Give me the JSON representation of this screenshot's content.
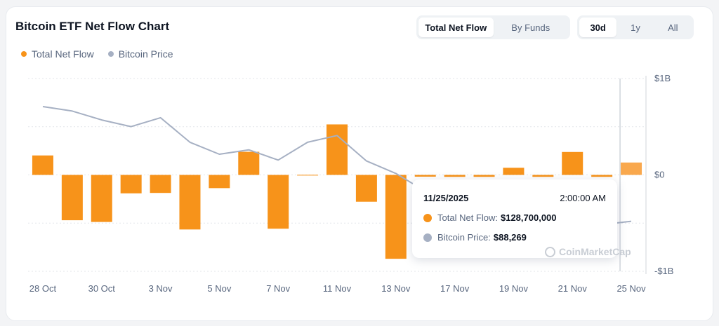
{
  "title": "Bitcoin ETF Net Flow Chart",
  "view_tabs": [
    {
      "label": "Total Net Flow",
      "active": true
    },
    {
      "label": "By Funds",
      "active": false
    }
  ],
  "range_tabs": [
    {
      "label": "30d",
      "active": true
    },
    {
      "label": "1y",
      "active": false
    },
    {
      "label": "All",
      "active": false
    }
  ],
  "colors": {
    "flow": "#f7931a",
    "price": "#a6b0c3",
    "grid": "#e3e6ea"
  },
  "tooltip": {
    "date": "11/25/2025",
    "time": "2:00:00 AM",
    "flow_label": "Total Net Flow:",
    "flow_value": "$128,700,000",
    "price_label": "Bitcoin Price:",
    "price_value": "$88,269"
  },
  "watermark": "CoinMarketCap",
  "chart_data": {
    "type": "bar",
    "legend": [
      "Total Net Flow",
      "Bitcoin Price"
    ],
    "legend_position": "top-left",
    "x": [
      "10/28",
      "10/29",
      "10/30",
      "10/31",
      "11/3",
      "11/4",
      "11/5",
      "11/6",
      "11/7",
      "11/10",
      "11/11",
      "11/12",
      "11/13",
      "11/14",
      "11/17",
      "11/18",
      "11/19",
      "11/20",
      "11/21",
      "11/24",
      "11/25"
    ],
    "x_tick_labels": [
      "28 Oct",
      "30 Oct",
      "3 Nov",
      "5 Nov",
      "7 Nov",
      "11 Nov",
      "13 Nov",
      "17 Nov",
      "19 Nov",
      "21 Nov",
      "25 Nov"
    ],
    "x_tick_indices": [
      0,
      2,
      4,
      6,
      8,
      10,
      12,
      14,
      16,
      18,
      20
    ],
    "y_tick_labels": [
      "$1B",
      "$0",
      "-$1B"
    ],
    "ylim": [
      -1000000000,
      1000000000
    ],
    "grid": true,
    "series": [
      {
        "name": "Total Net Flow",
        "type": "bar",
        "values": [
          202000000,
          -470000000,
          -488000000,
          -191000000,
          -187000000,
          -566000000,
          -137000000,
          240000000,
          -558000000,
          1000000,
          524000000,
          -278000000,
          -870000000,
          -18000000,
          -20000000,
          -20000000,
          74000000,
          -20000000,
          238000000,
          -20000000,
          128700000
        ]
      },
      {
        "name": "Bitcoin Price",
        "type": "line",
        "values": [
          114000,
          113000,
          111000,
          109500,
          111500,
          106000,
          103300,
          104300,
          102000,
          106000,
          107500,
          101800,
          99000,
          95000,
          92000,
          91500,
          90000,
          88000,
          86000,
          87500,
          88269
        ]
      }
    ]
  }
}
